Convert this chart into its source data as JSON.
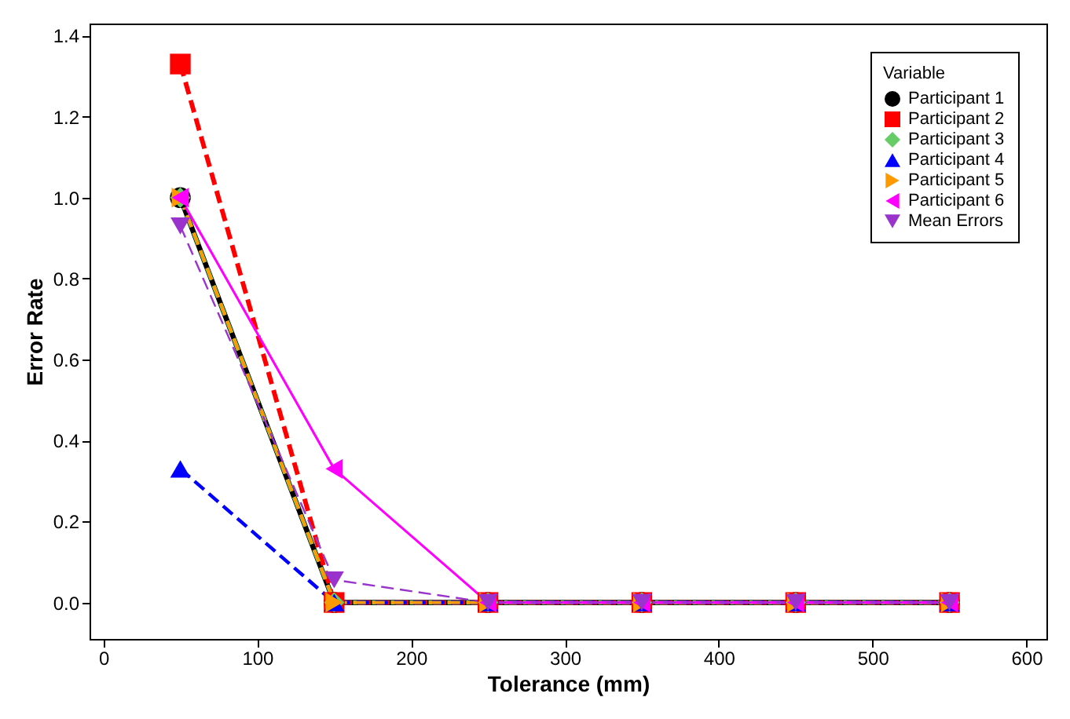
{
  "chart_data": {
    "type": "line",
    "xlabel": "Tolerance (mm)",
    "ylabel": "Error Rate",
    "legend_title": "Variable",
    "legend": "top right",
    "grid": false,
    "x": [
      50,
      150,
      250,
      350,
      450,
      550
    ],
    "xlim": [
      -9,
      613
    ],
    "xticks": [
      0,
      100,
      200,
      300,
      400,
      500,
      600
    ],
    "ylim": [
      -0.09,
      1.43
    ],
    "yticks": [
      {
        "value": 0,
        "label": "0.0"
      },
      {
        "value": 0.2,
        "label": "0.2"
      },
      {
        "value": 0.4,
        "label": "0.4"
      },
      {
        "value": 0.6,
        "label": "0.6"
      },
      {
        "value": 0.8,
        "label": "0.8"
      },
      {
        "value": 1.0,
        "label": "1.0"
      },
      {
        "value": 1.2,
        "label": "1.2"
      },
      {
        "value": 1.4,
        "label": "1.4"
      }
    ],
    "series": [
      {
        "name": "Participant 1",
        "color": "#000000",
        "marker": "circle",
        "line_style": "solid",
        "values": [
          1.0,
          0,
          0,
          0,
          0,
          0
        ]
      },
      {
        "name": "Participant 2",
        "color": "#ff0000",
        "marker": "square",
        "line_style": "dashed",
        "values": [
          1.33,
          0,
          0,
          0,
          0,
          0
        ]
      },
      {
        "name": "Participant 3",
        "color": "#66cc66",
        "marker": "diamond",
        "line_style": "dashed",
        "values": [
          1.0,
          0,
          0,
          0,
          0,
          0
        ]
      },
      {
        "name": "Participant 4",
        "color": "#0000ff",
        "marker": "triangle",
        "line_style": "dashed",
        "values": [
          0.33,
          0,
          0,
          0,
          0,
          0
        ]
      },
      {
        "name": "Participant 5",
        "color": "#ff9900",
        "marker": "triangle-right",
        "line_style": "dashed",
        "values": [
          1.0,
          0,
          0,
          0,
          0,
          0
        ]
      },
      {
        "name": "Participant 6",
        "color": "#ff00ff",
        "marker": "triangle-left",
        "line_style": "solid",
        "values": [
          1.0,
          0.33,
          0,
          0,
          0,
          0
        ]
      },
      {
        "name": "Mean Errors",
        "color": "#9933cc",
        "marker": "triangle-down",
        "line_style": "dashed",
        "values": [
          0.93,
          0.056,
          0,
          0,
          0,
          0
        ]
      }
    ]
  }
}
